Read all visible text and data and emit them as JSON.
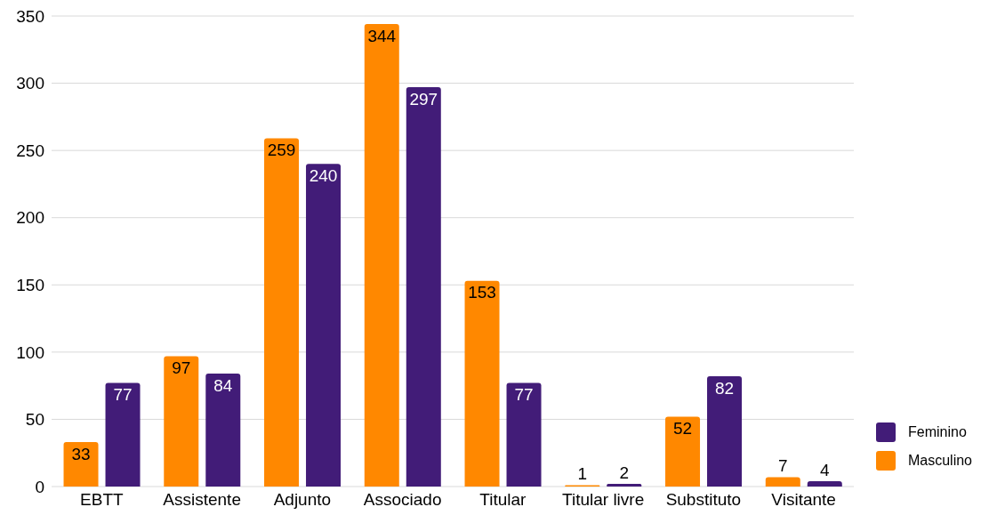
{
  "chart_data": {
    "type": "bar",
    "categories": [
      "EBTT",
      "Assistente",
      "Adjunto",
      "Associado",
      "Titular",
      "Titular livre",
      "Substituto",
      "Visitante"
    ],
    "series": [
      {
        "name": "Masculino",
        "color": "#ff8800",
        "values": [
          33,
          97,
          259,
          344,
          153,
          1,
          52,
          7
        ]
      },
      {
        "name": "Feminino",
        "color": "#421c78",
        "values": [
          77,
          84,
          240,
          297,
          77,
          2,
          82,
          4
        ]
      }
    ],
    "ylim": [
      0,
      350
    ],
    "yticks": [
      0,
      50,
      100,
      150,
      200,
      250,
      300,
      350
    ],
    "grid": "y",
    "legend": "bottom right",
    "data_labels": true
  }
}
